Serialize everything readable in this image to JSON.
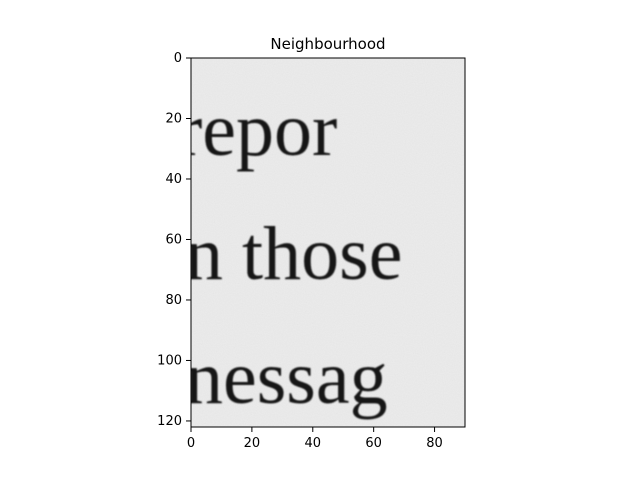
{
  "chart_data": {
    "type": "heatmap",
    "title": "Neighbourhood",
    "image_kind": "grayscale scanned text crop",
    "colormap": "gray",
    "xlabel": "",
    "ylabel": "",
    "xlim": [
      0,
      90
    ],
    "ylim": [
      122,
      0
    ],
    "x_ticks": [
      0,
      20,
      40,
      60,
      80
    ],
    "y_ticks": [
      0,
      20,
      40,
      60,
      80,
      100,
      120
    ],
    "x_tick_labels": [
      "0",
      "20",
      "40",
      "60",
      "80"
    ],
    "y_tick_labels": [
      "0",
      "20",
      "40",
      "60",
      "80",
      "100",
      "120"
    ],
    "visible_text_lines": [
      {
        "text": "repor",
        "baseline_row": 32
      },
      {
        "text": "n those",
        "baseline_row": 73
      },
      {
        "text": "nessag",
        "baseline_row": 114
      }
    ],
    "colors": {
      "background": "#ebebeb",
      "ink": "#141414",
      "axis": "#000000"
    }
  }
}
